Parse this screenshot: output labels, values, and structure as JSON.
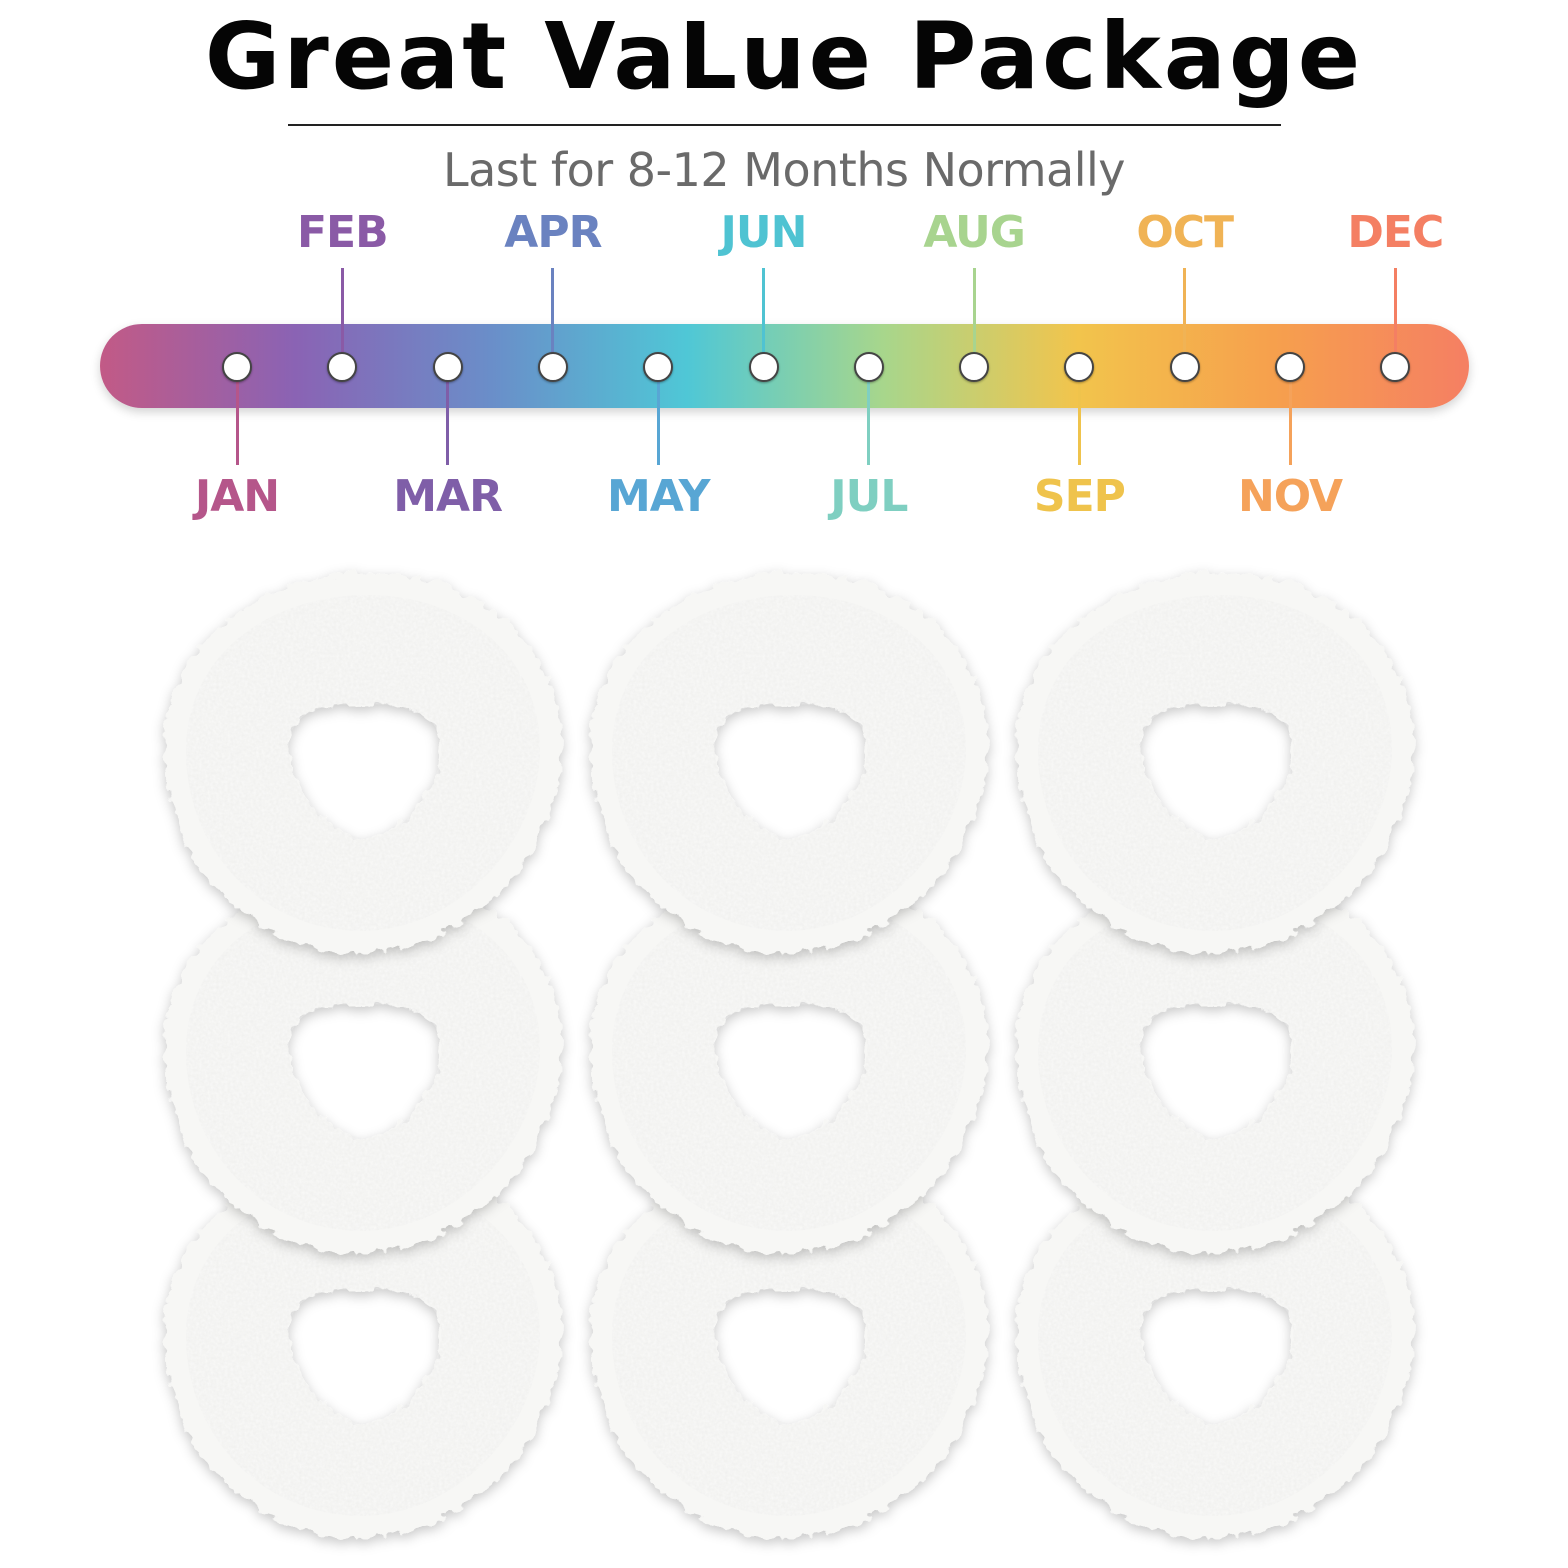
{
  "header": {
    "title": "Great VaLue Package",
    "subtitle": "Last for 8-12 Months Normally"
  },
  "timeline": {
    "gradient": [
      "#c25a86",
      "#8a63b4",
      "#6a8ec9",
      "#4fc7d6",
      "#a7d68c",
      "#f2c44c",
      "#f6a04d",
      "#f57f63"
    ],
    "months": [
      {
        "label": "JAN",
        "color": "#b5568a",
        "position": "below"
      },
      {
        "label": "FEB",
        "color": "#8a5aa6",
        "position": "above"
      },
      {
        "label": "MAR",
        "color": "#7f5ea8",
        "position": "below"
      },
      {
        "label": "APR",
        "color": "#6a82c0",
        "position": "above"
      },
      {
        "label": "MAY",
        "color": "#58a6d4",
        "position": "below"
      },
      {
        "label": "JUN",
        "color": "#4fc3d2",
        "position": "above"
      },
      {
        "label": "JUL",
        "color": "#7fcfc1",
        "position": "below"
      },
      {
        "label": "AUG",
        "color": "#a8d48f",
        "position": "above"
      },
      {
        "label": "SEP",
        "color": "#efc34c",
        "position": "below"
      },
      {
        "label": "OCT",
        "color": "#f0b355",
        "position": "above"
      },
      {
        "label": "NOV",
        "color": "#f5a25a",
        "position": "below"
      },
      {
        "label": "DEC",
        "color": "#f47f63",
        "position": "above"
      }
    ]
  },
  "product": {
    "pad_count": 9,
    "pad_color": "#f7f7f5"
  }
}
